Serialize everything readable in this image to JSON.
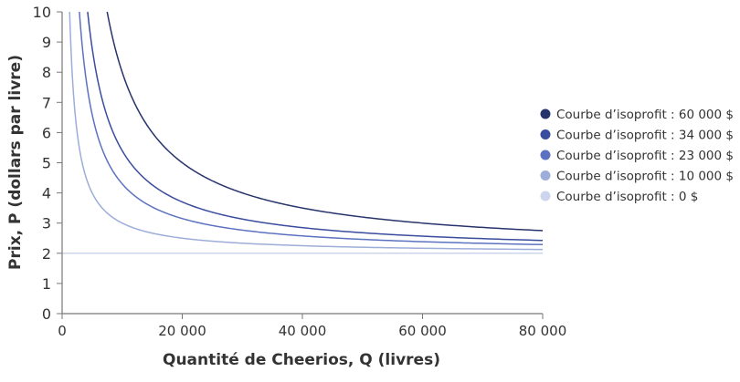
{
  "chart_data": {
    "type": "line",
    "xlabel": "Quantité de Cheerios, Q (livres)",
    "ylabel": "Prix, P (dollars par livre)",
    "xlim": [
      0,
      80000
    ],
    "ylim": [
      0,
      10
    ],
    "x_ticks": [
      0,
      20000,
      40000,
      60000,
      80000
    ],
    "x_tick_labels": [
      "0",
      "20 000",
      "40 000",
      "60 000",
      "80 000"
    ],
    "y_ticks": [
      0,
      1,
      2,
      3,
      4,
      5,
      6,
      7,
      8,
      9,
      10
    ],
    "y_tick_labels": [
      "0",
      "1",
      "2",
      "3",
      "4",
      "5",
      "6",
      "7",
      "8",
      "9",
      "10"
    ],
    "grid": false,
    "legend_placement": "right",
    "unit_cost": 2,
    "series": [
      {
        "name": "Courbe d’isoprofit : 60 000 $",
        "profit": 60000,
        "color": "#27336b"
      },
      {
        "name": "Courbe d’isoprofit : 34 000 $",
        "profit": 34000,
        "color": "#3a4c9e"
      },
      {
        "name": "Courbe d’isoprofit : 23 000 $",
        "profit": 23000,
        "color": "#5c72c0"
      },
      {
        "name": "Courbe d’isoprofit : 10 000 $",
        "profit": 10000,
        "color": "#9dadd9"
      },
      {
        "name": "Courbe d’isoprofit : 0 $",
        "profit": 0,
        "color": "#cdd5ec"
      }
    ]
  }
}
